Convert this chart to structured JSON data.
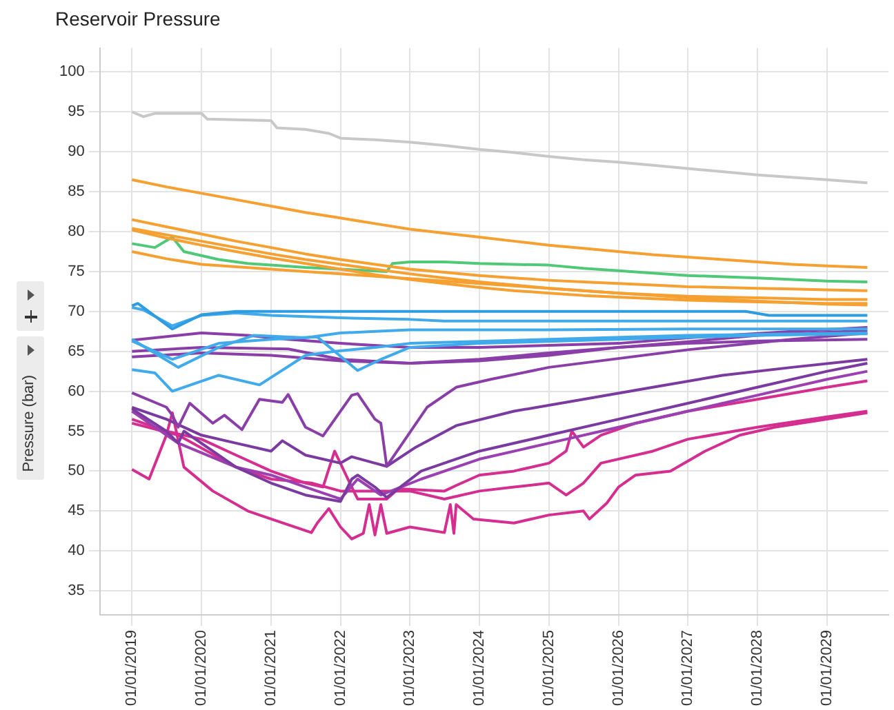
{
  "chart_data": {
    "type": "line",
    "title": "Reservoir Pressure",
    "ylabel": "Pressure (bar)",
    "xlim": [
      "2018-07-16",
      "2029-11-20"
    ],
    "xticks": [
      {
        "value": "2019-01-01",
        "label": "01/01/2019"
      },
      {
        "value": "2020-01-01",
        "label": "01/01/2020"
      },
      {
        "value": "2021-01-01",
        "label": "01/01/2021"
      },
      {
        "value": "2022-01-01",
        "label": "01/01/2022"
      },
      {
        "value": "2023-01-01",
        "label": "01/01/2023"
      },
      {
        "value": "2024-01-01",
        "label": "01/01/2024"
      },
      {
        "value": "2025-01-01",
        "label": "01/01/2025"
      },
      {
        "value": "2026-01-01",
        "label": "01/01/2026"
      },
      {
        "value": "2027-01-01",
        "label": "01/01/2027"
      },
      {
        "value": "2028-01-01",
        "label": "01/01/2028"
      },
      {
        "value": "2029-01-01",
        "label": "01/01/2029"
      }
    ],
    "ylim": [
      32,
      103
    ],
    "yticks": [
      35,
      40,
      45,
      50,
      55,
      60,
      65,
      70,
      75,
      80,
      85,
      90,
      95,
      100
    ],
    "grid": true,
    "legend": false,
    "marker": "none",
    "line_style": "solid",
    "series": [
      {
        "color": "#c8c8c8",
        "x": [
          "2019-01",
          "2019-03",
          "2019-05",
          "2020-01",
          "2020-02",
          "2020-07",
          "2021-01",
          "2021-02",
          "2021-07",
          "2021-11",
          "2022-01",
          "2022-07",
          "2023-01",
          "2023-07",
          "2024-01",
          "2024-07",
          "2025-01",
          "2025-07",
          "2026-01",
          "2026-07",
          "2027-01",
          "2027-07",
          "2028-01",
          "2028-07",
          "2029-01",
          "2029-08"
        ],
        "values": [
          95,
          94.4,
          94.8,
          94.8,
          94.1,
          94,
          93.9,
          93,
          92.8,
          92.3,
          91.7,
          91.5,
          91.2,
          90.8,
          90.3,
          89.9,
          89.4,
          89,
          88.7,
          88.3,
          87.9,
          87.5,
          87.1,
          86.8,
          86.5,
          86.1
        ]
      },
      {
        "color": "#f5a030",
        "x": [
          "2019-01",
          "2019-07",
          "2020-01",
          "2020-07",
          "2021-01",
          "2021-07",
          "2022-01",
          "2022-07",
          "2023-01",
          "2023-07",
          "2024-01",
          "2024-07",
          "2025-01",
          "2025-07",
          "2026-01",
          "2026-07",
          "2027-01",
          "2027-07",
          "2028-01",
          "2028-07",
          "2029-01",
          "2029-08"
        ],
        "values": [
          86.5,
          85.6,
          84.8,
          84,
          83.2,
          82.4,
          81.7,
          81,
          80.3,
          79.8,
          79.3,
          78.8,
          78.3,
          77.9,
          77.5,
          77.1,
          76.8,
          76.5,
          76.2,
          75.9,
          75.7,
          75.5
        ]
      },
      {
        "color": "#f5a030",
        "x": [
          "2019-01",
          "2019-07",
          "2020-01",
          "2020-07",
          "2021-01",
          "2021-07",
          "2022-01",
          "2022-07",
          "2023-01",
          "2023-07",
          "2024-01",
          "2024-07",
          "2025-01",
          "2025-07",
          "2026-01",
          "2026-07",
          "2027-01",
          "2027-07",
          "2028-01",
          "2028-07",
          "2029-01",
          "2029-08"
        ],
        "values": [
          81.5,
          80.6,
          79.7,
          78.8,
          78,
          77.2,
          76.5,
          75.9,
          75.3,
          74.9,
          74.5,
          74.2,
          73.9,
          73.7,
          73.5,
          73.3,
          73.1,
          73,
          72.9,
          72.8,
          72.7,
          72.6
        ]
      },
      {
        "color": "#f5a030",
        "x": [
          "2019-01",
          "2019-07",
          "2020-01",
          "2020-07",
          "2021-01",
          "2021-07",
          "2022-01",
          "2022-07",
          "2023-01",
          "2023-07",
          "2024-01",
          "2024-07",
          "2025-01",
          "2025-07",
          "2026-01",
          "2026-07",
          "2027-01",
          "2027-07",
          "2028-01",
          "2028-07",
          "2029-01",
          "2029-08"
        ],
        "values": [
          80.4,
          79.6,
          78.8,
          78,
          77.2,
          76.5,
          75.9,
          75.3,
          74.7,
          74.2,
          73.7,
          73.3,
          72.9,
          72.6,
          72.3,
          72.1,
          71.9,
          71.8,
          71.7,
          71.6,
          71.5,
          71.5
        ]
      },
      {
        "color": "#f5a030",
        "x": [
          "2019-01",
          "2019-07",
          "2020-01",
          "2020-07",
          "2021-01",
          "2021-07",
          "2022-01",
          "2022-07",
          "2023-01",
          "2023-07",
          "2024-01",
          "2024-07",
          "2025-01",
          "2025-07",
          "2026-01",
          "2026-07",
          "2027-01",
          "2027-07",
          "2028-01",
          "2028-07",
          "2029-01",
          "2029-08"
        ],
        "values": [
          80.2,
          79.2,
          78.3,
          77.5,
          76.7,
          76,
          75.3,
          74.6,
          74,
          73.5,
          73,
          72.6,
          72.3,
          72,
          71.8,
          71.6,
          71.4,
          71.3,
          71.2,
          71.1,
          71,
          71
        ]
      },
      {
        "color": "#f5a030",
        "x": [
          "2019-01",
          "2019-07",
          "2020-01",
          "2020-07",
          "2021-01",
          "2021-07",
          "2022-01",
          "2022-07",
          "2023-01",
          "2023-07",
          "2024-01",
          "2024-07",
          "2025-01",
          "2025-07",
          "2026-01",
          "2026-07",
          "2027-01",
          "2027-07",
          "2028-01",
          "2028-07",
          "2029-01",
          "2029-08"
        ],
        "values": [
          77.5,
          76.6,
          75.9,
          75.6,
          75.3,
          75,
          74.7,
          74.4,
          74.1,
          73.8,
          73.5,
          73.2,
          72.9,
          72.6,
          72.3,
          72,
          71.7,
          71.5,
          71.3,
          71.1,
          70.9,
          70.8
        ]
      },
      {
        "color": "#50c878",
        "x": [
          "2019-01",
          "2019-05",
          "2019-08",
          "2019-10",
          "2020-04",
          "2020-09",
          "2021-01",
          "2021-07",
          "2022-01",
          "2022-09",
          "2022-10",
          "2023-01",
          "2023-07",
          "2024-01",
          "2025-01",
          "2025-07",
          "2026-01",
          "2026-07",
          "2027-01",
          "2028-01",
          "2029-01",
          "2029-08"
        ],
        "values": [
          78.5,
          78,
          79.3,
          77.5,
          76.5,
          76,
          75.8,
          75.5,
          75.3,
          75,
          76,
          76.2,
          76.2,
          76,
          75.8,
          75.4,
          75.1,
          74.8,
          74.5,
          74.2,
          73.8,
          73.7
        ]
      },
      {
        "color": "#2f9be0",
        "x": [
          "2019-01",
          "2019-02",
          "2019-08",
          "2020-01",
          "2020-07",
          "2021-01",
          "2023-01",
          "2025-01",
          "2027-11",
          "2028-03",
          "2029-08"
        ],
        "values": [
          70.7,
          71,
          67.8,
          69.6,
          70,
          70,
          70,
          70,
          70,
          69.5,
          69.5
        ]
      },
      {
        "color": "#40aaea",
        "x": [
          "2019-01",
          "2019-03",
          "2019-08",
          "2020-01",
          "2020-07",
          "2021-01",
          "2022-01",
          "2023-01",
          "2023-07",
          "2025-01",
          "2027-01",
          "2029-08"
        ],
        "values": [
          70.5,
          70.2,
          68.2,
          69.5,
          69.8,
          69.5,
          69.2,
          69,
          68.8,
          68.8,
          68.8,
          68.8
        ]
      },
      {
        "color": "#40aaea",
        "x": [
          "2019-01",
          "2019-09",
          "2020-04",
          "2020-10",
          "2021-07",
          "2022-01",
          "2022-07",
          "2023-01",
          "2025-01",
          "2027-01",
          "2029-08"
        ],
        "values": [
          66.5,
          63,
          65.5,
          67,
          66.7,
          67.3,
          67.5,
          67.7,
          67.7,
          67.8,
          67.8
        ]
      },
      {
        "color": "#40aaea",
        "x": [
          "2019-01",
          "2019-05",
          "2019-08",
          "2020-04",
          "2020-11",
          "2021-07",
          "2021-12",
          "2022-07",
          "2023-01",
          "2025-01",
          "2027-01",
          "2029-08"
        ],
        "values": [
          62.7,
          62.3,
          60,
          62,
          60.8,
          64.5,
          65,
          65.5,
          66,
          66.5,
          67,
          67.3
        ]
      },
      {
        "color": "#40aaea",
        "x": [
          "2019-01",
          "2019-08",
          "2020-04",
          "2021-01",
          "2021-09",
          "2022-04",
          "2022-08",
          "2023-01",
          "2024-01",
          "2026-01",
          "2028-01",
          "2029-08"
        ],
        "values": [
          66.3,
          64,
          66,
          66.5,
          66.8,
          62.6,
          64,
          65.5,
          66,
          66.5,
          67,
          67.2
        ]
      },
      {
        "color": "#8a3fa8",
        "x": [
          "2019-01",
          "2020-01",
          "2020-09",
          "2021-04",
          "2022-01",
          "2023-01",
          "2024-01",
          "2026-01",
          "2027-01",
          "2028-07",
          "2029-08"
        ],
        "values": [
          66.4,
          67.3,
          67,
          66.5,
          66,
          65.5,
          65.5,
          66,
          66.7,
          67.5,
          68
        ]
      },
      {
        "color": "#8a3fa8",
        "x": [
          "2019-01",
          "2020-01",
          "2021-04",
          "2022-01",
          "2023-01",
          "2024-01",
          "2025-01",
          "2026-01",
          "2027-01",
          "2028-01",
          "2029-08"
        ],
        "values": [
          65,
          65.5,
          65.3,
          64,
          63.5,
          63.8,
          64.5,
          65.5,
          66.2,
          67,
          67.6
        ]
      },
      {
        "color": "#8a3fa8",
        "x": [
          "2019-01",
          "2020-01",
          "2021-01",
          "2022-01",
          "2023-01",
          "2024-01",
          "2025-01",
          "2026-01",
          "2027-01",
          "2028-01",
          "2029-08"
        ],
        "values": [
          64.3,
          64.8,
          64.5,
          63.8,
          63.5,
          64,
          64.8,
          65.5,
          66,
          66.3,
          66.5
        ]
      },
      {
        "color": "#8a3fa8",
        "x": [
          "2019-01",
          "2019-07",
          "2019-08",
          "2019-09",
          "2019-11",
          "2020-03",
          "2020-05",
          "2020-08",
          "2020-11",
          "2021-03",
          "2021-04",
          "2021-07",
          "2021-10",
          "2022-03",
          "2022-04",
          "2022-07",
          "2022-08",
          "2022-09",
          "2023-04",
          "2023-09",
          "2024-03",
          "2025-01",
          "2027-01",
          "2028-07",
          "2029-08"
        ],
        "values": [
          59.8,
          58,
          57,
          55.5,
          58.5,
          56,
          57,
          55.2,
          59,
          58.6,
          59.6,
          55.5,
          54.4,
          59.5,
          59.7,
          56.5,
          56,
          50.6,
          58,
          60.5,
          61.5,
          63,
          65.2,
          66.5,
          67.3
        ]
      },
      {
        "color": "#7b3aa0",
        "x": [
          "2019-01",
          "2019-07",
          "2020-01",
          "2020-07",
          "2021-01",
          "2021-03",
          "2021-07",
          "2022-01",
          "2022-03",
          "2022-07",
          "2022-09",
          "2023-02",
          "2023-09",
          "2024-07",
          "2025-07",
          "2026-07",
          "2027-07",
          "2028-07",
          "2029-08"
        ],
        "values": [
          58,
          56.5,
          54.5,
          53.5,
          52.5,
          53.8,
          52,
          51,
          51.8,
          51,
          50.6,
          53,
          55.7,
          57.5,
          59,
          60.5,
          62,
          63,
          64
        ]
      },
      {
        "color": "#7b3aa0",
        "x": [
          "2019-01",
          "2019-07",
          "2019-09",
          "2019-10",
          "2020-07",
          "2021-01",
          "2021-07",
          "2022-01",
          "2022-03",
          "2022-04",
          "2022-07",
          "2022-09",
          "2023-03",
          "2024-01",
          "2025-01",
          "2026-01",
          "2027-01",
          "2028-01",
          "2029-01",
          "2029-08"
        ],
        "values": [
          57.8,
          55,
          53.5,
          55,
          50.5,
          48.5,
          47,
          46.2,
          49,
          49.5,
          48,
          46.7,
          50,
          52.5,
          54.5,
          56.5,
          58.5,
          60.5,
          62.5,
          63.5
        ]
      },
      {
        "color": "#9a40b0",
        "x": [
          "2019-01",
          "2019-09",
          "2020-07",
          "2021-01",
          "2021-07",
          "2022-01",
          "2022-04",
          "2022-08",
          "2023-03",
          "2024-01",
          "2025-01",
          "2026-01",
          "2027-01",
          "2028-01",
          "2029-01",
          "2029-08"
        ],
        "values": [
          57.5,
          53.5,
          50.5,
          49.5,
          48,
          46.5,
          49,
          47,
          49,
          51.5,
          53.5,
          55.5,
          57.5,
          59.5,
          61.5,
          62.5
        ]
      },
      {
        "color": "#d42f90",
        "x": [
          "2019-01",
          "2019-07",
          "2020-01",
          "2020-07",
          "2021-01",
          "2021-07",
          "2021-10",
          "2021-12",
          "2022-03",
          "2022-04",
          "2022-09",
          "2022-11",
          "2023-07",
          "2023-09",
          "2024-01",
          "2024-07",
          "2025-01",
          "2025-04",
          "2025-05",
          "2025-07",
          "2025-10",
          "2026-04",
          "2027-01",
          "2028-01",
          "2029-01",
          "2029-08"
        ],
        "values": [
          56.5,
          55,
          54,
          52,
          50,
          48.5,
          48,
          52.5,
          48,
          46.5,
          46.5,
          47.8,
          47.5,
          48.2,
          49.5,
          50,
          51,
          52.5,
          55,
          53,
          54.5,
          56,
          57.5,
          59,
          60.5,
          61.3
        ]
      },
      {
        "color": "#d42f90",
        "x": [
          "2019-01",
          "2019-09",
          "2020-07",
          "2021-01",
          "2021-08",
          "2022-01",
          "2022-08",
          "2023-01",
          "2023-07",
          "2024-01",
          "2024-07",
          "2025-01",
          "2025-04",
          "2025-07",
          "2025-10",
          "2026-07",
          "2027-01",
          "2028-01",
          "2029-01",
          "2029-08"
        ],
        "values": [
          56,
          54.5,
          50.5,
          49,
          48.5,
          47.5,
          47.5,
          47.5,
          46.5,
          47.5,
          48,
          48.5,
          47,
          48.5,
          51,
          52.5,
          54,
          55.5,
          56.8,
          57.5
        ]
      },
      {
        "color": "#d42f90",
        "x": [
          "2019-01",
          "2019-04",
          "2019-07",
          "2019-08",
          "2019-10",
          "2020-03",
          "2020-09",
          "2021-01",
          "2021-08",
          "2021-09",
          "2021-11",
          "2022-01",
          "2022-03",
          "2022-05",
          "2022-06",
          "2022-07",
          "2022-08",
          "2022-09",
          "2023-01",
          "2023-07",
          "2023-08",
          "2023-08-20",
          "2023-09",
          "2023-12",
          "2024-07",
          "2025-01",
          "2025-07",
          "2025-08",
          "2025-11",
          "2026-01",
          "2026-04",
          "2026-10",
          "2027-04",
          "2027-10",
          "2028-04",
          "2029-01",
          "2029-08"
        ],
        "values": [
          50.2,
          49,
          54.5,
          57.3,
          50.5,
          47.5,
          45,
          44,
          42.3,
          43.5,
          45.3,
          43,
          41.5,
          42.2,
          45.8,
          42,
          45.8,
          42.2,
          43,
          42.3,
          45.8,
          42.2,
          45.8,
          44,
          43.5,
          44.5,
          45,
          44,
          46,
          48,
          49.5,
          50,
          52.5,
          54.5,
          55.5,
          56.5,
          57.3
        ]
      }
    ]
  }
}
